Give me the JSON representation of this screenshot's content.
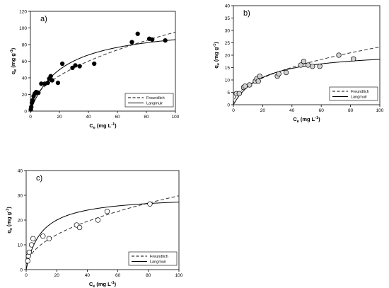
{
  "chart_data": [
    {
      "type": "scatter",
      "panel_label": "a)",
      "xlabel": "C",
      "xlabel_sub": "e",
      "xlabel_unit": "(mg L",
      "ylabel": "q",
      "ylabel_sub": "e",
      "ylabel_unit": "(mg g",
      "unit_exp": "-1",
      "unit_close": ")",
      "xlim": [
        0,
        100
      ],
      "ylim": [
        0,
        120
      ],
      "xticks": [
        0,
        20,
        40,
        60,
        80,
        100
      ],
      "yticks": [
        0,
        20,
        40,
        60,
        80,
        100,
        120
      ],
      "marker": "filled-circle",
      "points": [
        [
          0.3,
          2
        ],
        [
          0.6,
          5
        ],
        [
          1.0,
          10
        ],
        [
          1.5,
          13
        ],
        [
          2.2,
          18
        ],
        [
          3.0,
          21
        ],
        [
          4.0,
          23
        ],
        [
          5.5,
          22
        ],
        [
          7.5,
          33
        ],
        [
          10,
          33
        ],
        [
          12,
          34
        ],
        [
          13,
          39
        ],
        [
          14,
          42
        ],
        [
          15,
          37
        ],
        [
          19,
          34
        ],
        [
          22,
          57
        ],
        [
          29,
          52
        ],
        [
          31,
          55
        ],
        [
          34,
          54
        ],
        [
          44,
          57
        ],
        [
          70,
          83
        ],
        [
          74,
          93
        ],
        [
          82,
          87
        ],
        [
          84,
          86
        ],
        [
          93,
          85
        ]
      ],
      "series": [
        {
          "name": "Freundlich",
          "style": "dashed",
          "model": "freundlich",
          "params": {
            "K": 9.5,
            "n": 2.0
          }
        },
        {
          "name": "Langmuir",
          "style": "solid",
          "model": "langmuir",
          "params": {
            "Q": 105,
            "K": 0.045
          }
        }
      ],
      "legend_position": "bottom-right"
    },
    {
      "type": "scatter",
      "panel_label": "b)",
      "xlabel": "C",
      "xlabel_sub": "e",
      "xlabel_unit": "(mg L",
      "ylabel": "q",
      "ylabel_sub": "e",
      "ylabel_unit": "(mg g",
      "unit_exp": "-1",
      "unit_close": ")",
      "xlim": [
        0,
        100
      ],
      "ylim": [
        0,
        40
      ],
      "xticks": [
        0,
        20,
        40,
        60,
        80,
        100
      ],
      "yticks": [
        0,
        5,
        10,
        15,
        20,
        25,
        30,
        35,
        40
      ],
      "marker": "grey-circle",
      "points": [
        [
          2,
          4.5
        ],
        [
          4,
          4.5
        ],
        [
          7,
          7
        ],
        [
          8,
          7.5
        ],
        [
          11,
          8
        ],
        [
          15,
          9.5
        ],
        [
          16,
          10.5
        ],
        [
          17,
          9.5
        ],
        [
          18,
          11.5
        ],
        [
          30,
          11.5
        ],
        [
          31,
          12.5
        ],
        [
          36,
          13
        ],
        [
          46,
          16
        ],
        [
          48,
          17.5
        ],
        [
          51,
          16
        ],
        [
          54,
          15.5
        ],
        [
          59,
          15.5
        ],
        [
          72,
          20
        ],
        [
          82,
          18.5
        ]
      ],
      "series": [
        {
          "name": "Freundlich",
          "style": "dashed",
          "model": "freundlich",
          "params": {
            "K": 2.6,
            "n": 2.1
          }
        },
        {
          "name": "Langmuir",
          "style": "solid",
          "model": "langmuir",
          "params": {
            "Q": 22,
            "K": 0.05
          }
        }
      ],
      "legend_position": "bottom-right"
    },
    {
      "type": "scatter",
      "panel_label": "c)",
      "xlabel": "C",
      "xlabel_sub": "e",
      "xlabel_unit": "(mg L",
      "ylabel": "q",
      "ylabel_sub": "e",
      "ylabel_unit": "(mg g",
      "unit_exp": "-1",
      "unit_close": ")",
      "xlim": [
        0,
        100
      ],
      "ylim": [
        0,
        40
      ],
      "xticks": [
        0,
        20,
        40,
        60,
        80,
        100
      ],
      "yticks": [
        0,
        10,
        20,
        30,
        40
      ],
      "marker": "open-circle",
      "points": [
        [
          1,
          3.5
        ],
        [
          1.5,
          5.5
        ],
        [
          2,
          7
        ],
        [
          3.5,
          10
        ],
        [
          4.5,
          12.5
        ],
        [
          11,
          13.5
        ],
        [
          15,
          12.5
        ],
        [
          33,
          18
        ],
        [
          35,
          17
        ],
        [
          47,
          20
        ],
        [
          53,
          23.5
        ],
        [
          81,
          26.5
        ]
      ],
      "series": [
        {
          "name": "Freundlich",
          "style": "dashed",
          "model": "freundlich",
          "params": {
            "K": 3.5,
            "n": 2.15
          }
        },
        {
          "name": "Langmuir",
          "style": "solid",
          "model": "langmuir",
          "params": {
            "Q": 30,
            "K": 0.1
          }
        }
      ],
      "legend_position": "bottom-right"
    }
  ]
}
